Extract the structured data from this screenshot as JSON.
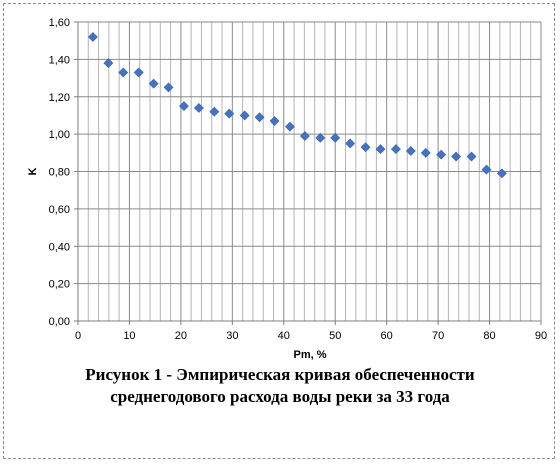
{
  "chart_data": {
    "type": "scatter",
    "title": "",
    "xlabel": "Pm, %",
    "ylabel": "K",
    "xlim": [
      0,
      90
    ],
    "ylim": [
      0,
      1.6
    ],
    "x_ticks": [
      "0",
      "10",
      "20",
      "30",
      "40",
      "50",
      "60",
      "70",
      "80",
      "90"
    ],
    "y_ticks": [
      "0,00",
      "0,20",
      "0,40",
      "0,60",
      "0,80",
      "1,00",
      "1,20",
      "1,40",
      "1,60"
    ],
    "grid": true,
    "legend": "none",
    "marker_color": "#4472C4",
    "series": [
      {
        "points": [
          {
            "x": 2.9,
            "y": 1.52
          },
          {
            "x": 5.9,
            "y": 1.38
          },
          {
            "x": 8.8,
            "y": 1.33
          },
          {
            "x": 11.8,
            "y": 1.33
          },
          {
            "x": 14.7,
            "y": 1.27
          },
          {
            "x": 17.6,
            "y": 1.25
          },
          {
            "x": 20.6,
            "y": 1.15
          },
          {
            "x": 23.5,
            "y": 1.14
          },
          {
            "x": 26.5,
            "y": 1.12
          },
          {
            "x": 29.4,
            "y": 1.11
          },
          {
            "x": 32.4,
            "y": 1.1
          },
          {
            "x": 35.3,
            "y": 1.09
          },
          {
            "x": 38.2,
            "y": 1.07
          },
          {
            "x": 41.2,
            "y": 1.04
          },
          {
            "x": 44.1,
            "y": 0.99
          },
          {
            "x": 47.1,
            "y": 0.98
          },
          {
            "x": 50.0,
            "y": 0.98
          },
          {
            "x": 52.9,
            "y": 0.95
          },
          {
            "x": 55.9,
            "y": 0.93
          },
          {
            "x": 58.8,
            "y": 0.92
          },
          {
            "x": 61.8,
            "y": 0.92
          },
          {
            "x": 64.7,
            "y": 0.91
          },
          {
            "x": 67.6,
            "y": 0.9
          },
          {
            "x": 70.6,
            "y": 0.89
          },
          {
            "x": 73.5,
            "y": 0.88
          },
          {
            "x": 76.5,
            "y": 0.88
          },
          {
            "x": 79.4,
            "y": 0.81
          },
          {
            "x": 82.4,
            "y": 0.79
          }
        ]
      }
    ]
  },
  "caption": {
    "line1": "Рисунок 1 - Эмпирическая кривая обеспеченности",
    "line2": "среднегодового расхода воды реки за 33 года"
  }
}
